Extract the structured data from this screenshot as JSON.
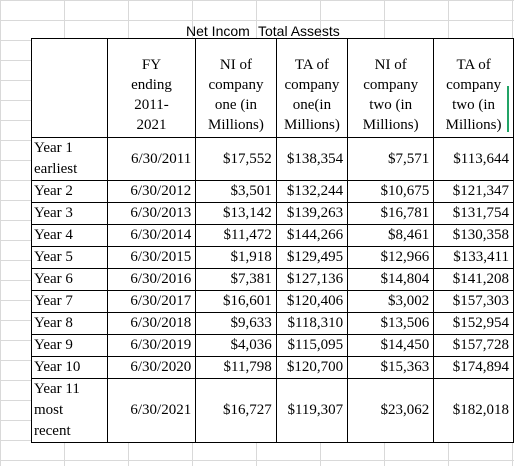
{
  "overlay": {
    "ni_title": "Net Incom",
    "ta_title": "Total Assests"
  },
  "headers": {
    "fy": [
      "FY",
      "ending",
      "2011-",
      "2021"
    ],
    "ni1": [
      "NI of",
      "company",
      "one (in",
      "Millions)"
    ],
    "ta1": [
      "TA of",
      "company",
      "one(in",
      "Millions)"
    ],
    "ni2": [
      "NI of",
      "company",
      "two (in",
      "Millions)"
    ],
    "ta2": [
      "TA of",
      "company",
      "two (in",
      "Millions)"
    ]
  },
  "rows": [
    {
      "year": [
        "Year 1",
        "earliest"
      ],
      "fy": "6/30/2011",
      "ni1": "$17,552",
      "ta1": "$138,354",
      "ni2": "$7,571",
      "ta2": "$113,644"
    },
    {
      "year": [
        "Year 2"
      ],
      "fy": "6/30/2012",
      "ni1": "$3,501",
      "ta1": "$132,244",
      "ni2": "$10,675",
      "ta2": "$121,347"
    },
    {
      "year": [
        "Year 3"
      ],
      "fy": "6/30/2013",
      "ni1": "$13,142",
      "ta1": "$139,263",
      "ni2": "$16,781",
      "ta2": "$131,754"
    },
    {
      "year": [
        "Year 4"
      ],
      "fy": "6/30/2014",
      "ni1": "$11,472",
      "ta1": "$144,266",
      "ni2": "$8,461",
      "ta2": "$130,358"
    },
    {
      "year": [
        "Year 5"
      ],
      "fy": "6/30/2015",
      "ni1": "$1,918",
      "ta1": "$129,495",
      "ni2": "$12,966",
      "ta2": "$133,411"
    },
    {
      "year": [
        "Year 6"
      ],
      "fy": "6/30/2016",
      "ni1": "$7,381",
      "ta1": "$127,136",
      "ni2": "$14,804",
      "ta2": "$141,208"
    },
    {
      "year": [
        "Year 7"
      ],
      "fy": "6/30/2017",
      "ni1": "$16,601",
      "ta1": "$120,406",
      "ni2": "$3,002",
      "ta2": "$157,303"
    },
    {
      "year": [
        "Year 8"
      ],
      "fy": "6/30/2018",
      "ni1": "$9,633",
      "ta1": "$118,310",
      "ni2": "$13,506",
      "ta2": "$152,954"
    },
    {
      "year": [
        "Year 9"
      ],
      "fy": "6/30/2019",
      "ni1": "$4,036",
      "ta1": "$115,095",
      "ni2": "$14,450",
      "ta2": "$157,728"
    },
    {
      "year": [
        "Year 10"
      ],
      "fy": "6/30/2020",
      "ni1": "$11,798",
      "ta1": "$120,700",
      "ni2": "$15,363",
      "ta2": "$174,894"
    },
    {
      "year": [
        "Year 11",
        "most",
        "recent"
      ],
      "fy": "6/30/2021",
      "ni1": "$16,727",
      "ta1": "$119,307",
      "ni2": "$23,062",
      "ta2": "$182,018"
    }
  ]
}
